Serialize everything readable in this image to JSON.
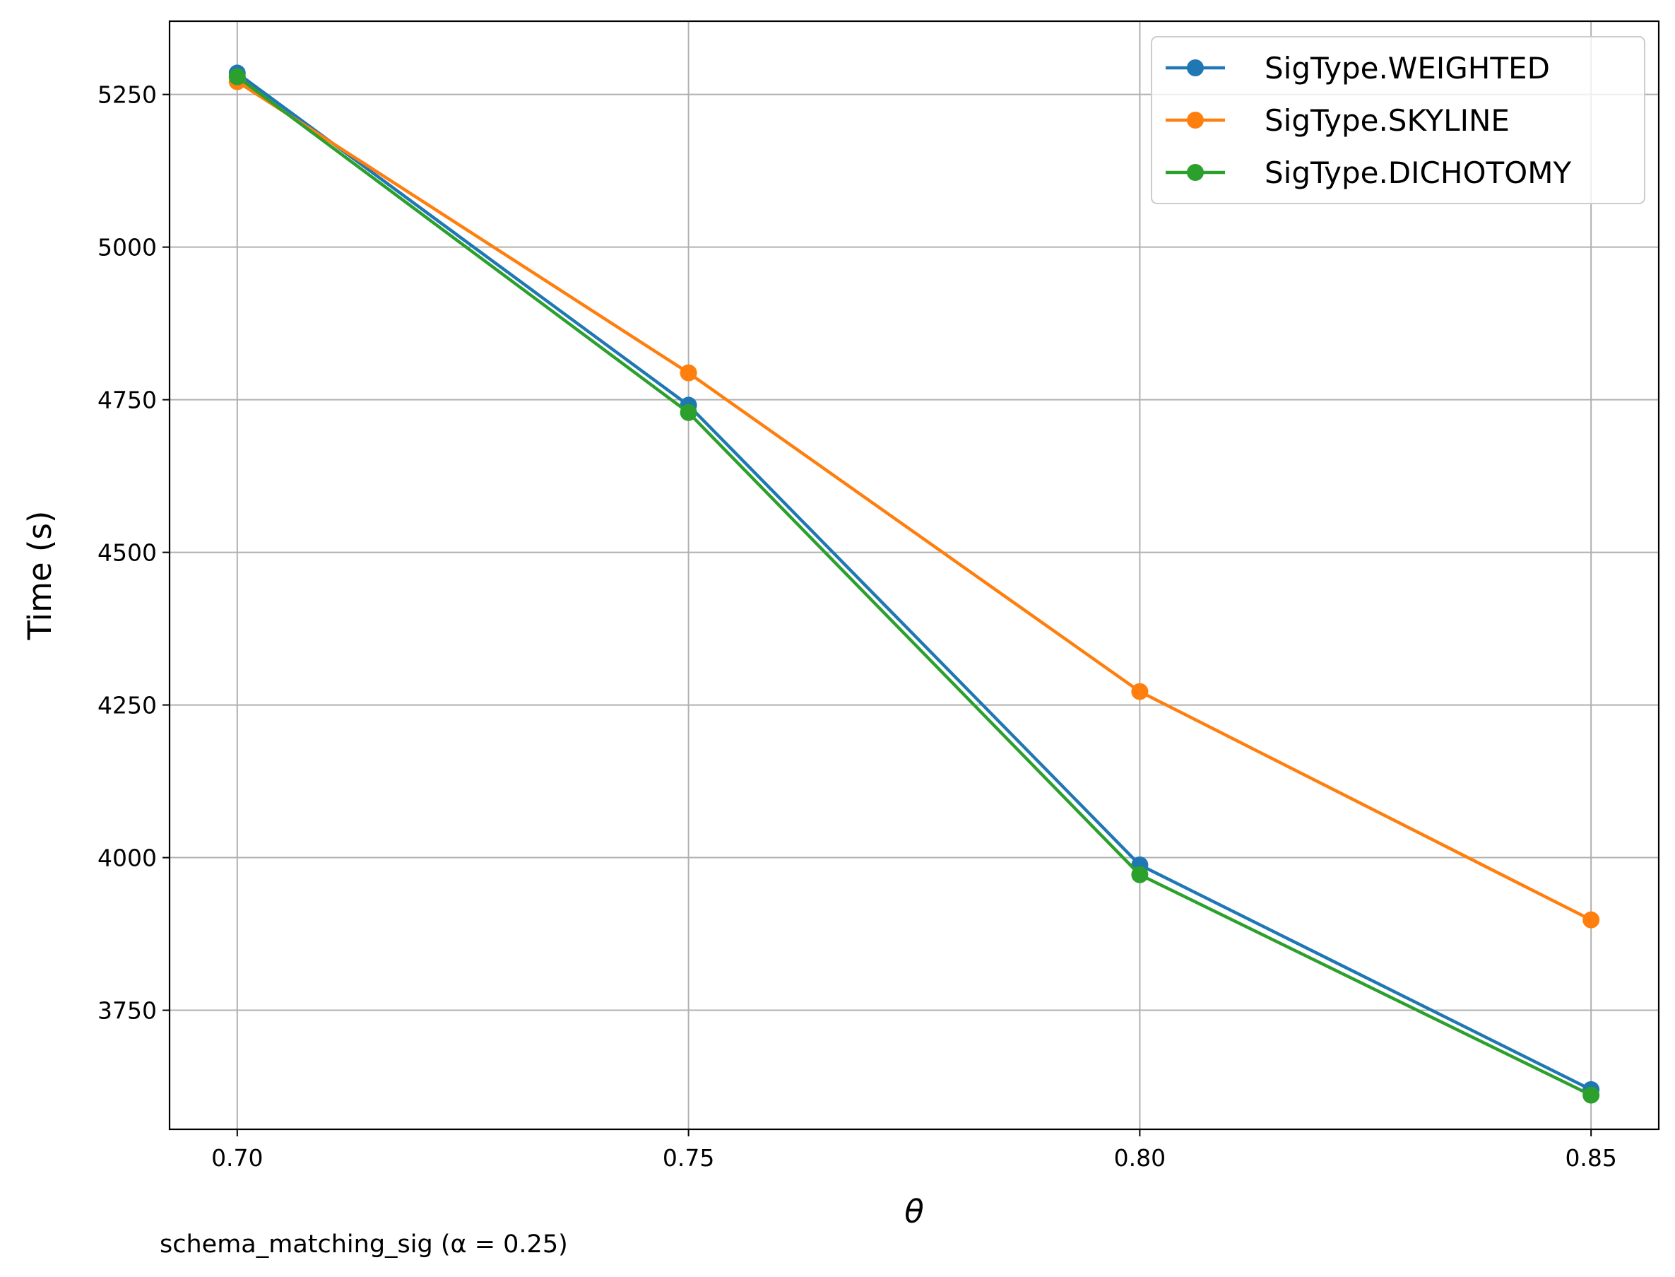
{
  "chart_data": {
    "type": "line",
    "x": [
      0.7,
      0.75,
      0.8,
      0.85
    ],
    "x_tick_labels": [
      "0.70",
      "0.75",
      "0.80",
      "0.85"
    ],
    "y_ticks": [
      3750,
      4000,
      4250,
      4500,
      4750,
      5000,
      5250
    ],
    "y_tick_labels": [
      "3750",
      "4000",
      "4250",
      "4500",
      "4750",
      "5000",
      "5250"
    ],
    "xlim": [
      0.6925,
      0.8575
    ],
    "ylim": [
      3555,
      5370
    ],
    "xlabel": "θ",
    "ylabel": "Time (s)",
    "caption": "schema_matching_sig (α = 0.25)",
    "grid": true,
    "legend_position": "top-right",
    "series": [
      {
        "name": "SigType.WEIGHTED",
        "color": "#1f77b4",
        "values": [
          5285,
          4741,
          3988,
          3620
        ]
      },
      {
        "name": "SigType.SKYLINE",
        "color": "#ff7f0e",
        "values": [
          5271,
          4794,
          4272,
          3898
        ]
      },
      {
        "name": "SigType.DICHOTOMY",
        "color": "#2ca02c",
        "values": [
          5279,
          4729,
          3972,
          3611
        ]
      }
    ]
  }
}
